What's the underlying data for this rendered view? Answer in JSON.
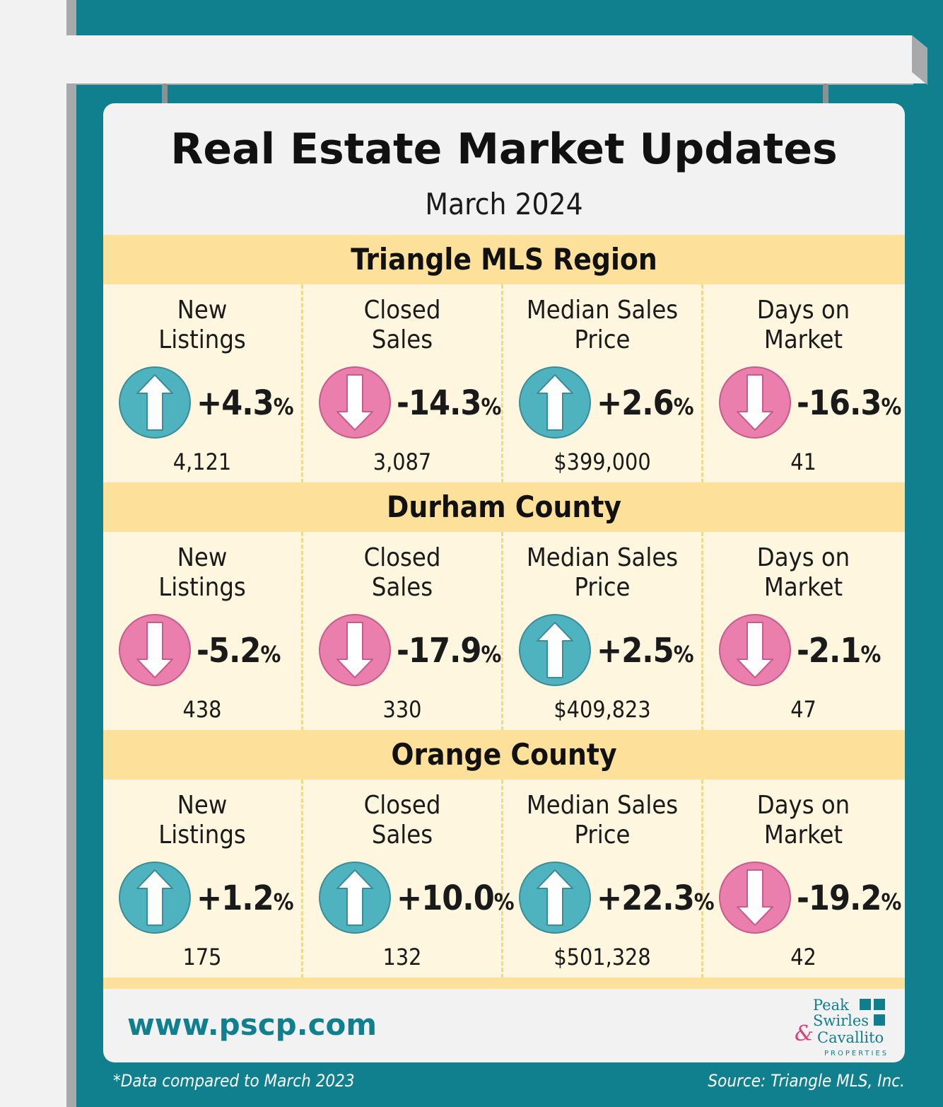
{
  "title": "Real Estate Market Updates",
  "subtitle": "March 2024",
  "colors": {
    "teal_background": "#10808e",
    "up_arrow": "#4fb3bf",
    "down_arrow": "#ea7fae",
    "header_band": "#fde19a",
    "cell_background": "#fef6df"
  },
  "regions": [
    {
      "name": "Triangle MLS Region",
      "metrics": [
        {
          "label": "New\nListings",
          "direction": "up",
          "change": "+4.3",
          "pct": "%",
          "count": "4,121",
          "icon": "up-arrow-icon"
        },
        {
          "label": "Closed\nSales",
          "direction": "down",
          "change": "-14.3",
          "pct": "%",
          "count": "3,087",
          "icon": "down-arrow-icon"
        },
        {
          "label": "Median Sales\nPrice",
          "direction": "up",
          "change": "+2.6",
          "pct": "%",
          "count": "$399,000",
          "icon": "up-arrow-icon"
        },
        {
          "label": "Days on\nMarket",
          "direction": "down",
          "change": "-16.3",
          "pct": "%",
          "count": "41",
          "icon": "down-arrow-icon"
        }
      ]
    },
    {
      "name": "Durham County",
      "metrics": [
        {
          "label": "New\nListings",
          "direction": "down",
          "change": "-5.2",
          "pct": "%",
          "count": "438",
          "icon": "down-arrow-icon"
        },
        {
          "label": "Closed\nSales",
          "direction": "down",
          "change": "-17.9",
          "pct": "%",
          "count": "330",
          "icon": "down-arrow-icon"
        },
        {
          "label": "Median Sales\nPrice",
          "direction": "up",
          "change": "+2.5",
          "pct": "%",
          "count": "$409,823",
          "icon": "up-arrow-icon"
        },
        {
          "label": "Days on\nMarket",
          "direction": "down",
          "change": "-2.1",
          "pct": "%",
          "count": "47",
          "icon": "down-arrow-icon"
        }
      ]
    },
    {
      "name": "Orange County",
      "metrics": [
        {
          "label": "New\nListings",
          "direction": "up",
          "change": "+1.2",
          "pct": "%",
          "count": "175",
          "icon": "up-arrow-icon"
        },
        {
          "label": "Closed\nSales",
          "direction": "up",
          "change": "+10.0",
          "pct": "%",
          "count": "132",
          "icon": "up-arrow-icon"
        },
        {
          "label": "Median Sales\nPrice",
          "direction": "up",
          "change": "+22.3",
          "pct": "%",
          "count": "$501,328",
          "icon": "up-arrow-icon"
        },
        {
          "label": "Days on\nMarket",
          "direction": "down",
          "change": "-19.2",
          "pct": "%",
          "count": "42",
          "icon": "down-arrow-icon"
        }
      ]
    }
  ],
  "website": "www.pscp.com",
  "logo": {
    "line1": "Peak",
    "line2": "Swirles",
    "ampersand": "&",
    "line3": "Cavallito",
    "line4": "PROPERTIES"
  },
  "footnote_left": "*Data compared to March 2023",
  "footnote_right": "Source: Triangle MLS, Inc."
}
